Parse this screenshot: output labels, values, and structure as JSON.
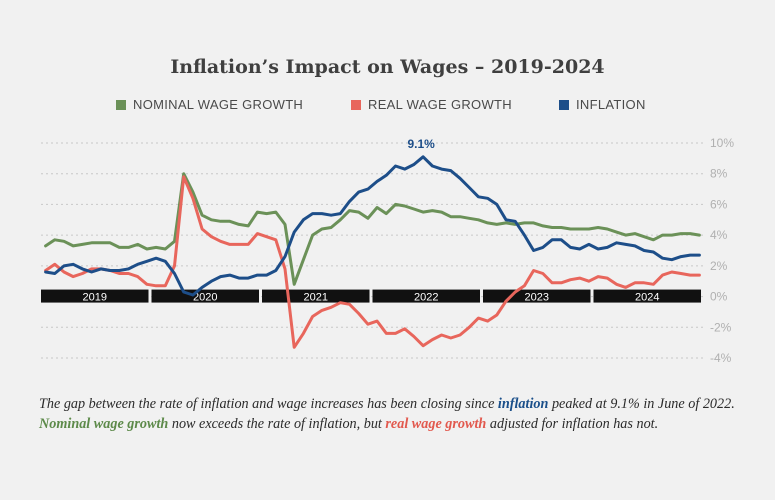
{
  "title": "Inflation’s Impact on Wages – 2019-2024",
  "legend": {
    "nominal": "NOMINAL WAGE GROWTH",
    "real": "REAL WAGE GROWTH",
    "inflation": "INFLATION"
  },
  "colors": {
    "nominal": "#6b9158",
    "real": "#e8665c",
    "inflation": "#1d4e89",
    "grid": "#c8c8c8",
    "tick": "#b0b0b0",
    "band": "#111111"
  },
  "annotation": {
    "label": "9.1%"
  },
  "caption": {
    "p1": "The gap between the rate of inflation and wage increases has been closing since ",
    "k1": "inflation",
    "p2": " peaked at 9.1% in June of 2022. ",
    "k2": "Nominal wage growth",
    "p3": " now exceeds the rate of inflation, but ",
    "k3": "real wage growth",
    "p4": " adjusted for inflation has not."
  },
  "chart_data": {
    "type": "line",
    "x_start": "2019-01",
    "x_end": "2024-12",
    "years": [
      "2019",
      "2020",
      "2021",
      "2022",
      "2023",
      "2024"
    ],
    "yticks": [
      10,
      8,
      6,
      4,
      2,
      0,
      -2,
      -4
    ],
    "ytick_labels": [
      "10%",
      "8%",
      "6%",
      "4%",
      "2%",
      "0%",
      "-2%",
      "-4%"
    ],
    "ylim": [
      -4,
      10
    ],
    "grid": true,
    "legend_position": "top",
    "series": [
      {
        "key": "nominal",
        "name": "NOMINAL WAGE GROWTH",
        "values": [
          3.3,
          3.7,
          3.6,
          3.3,
          3.4,
          3.5,
          3.5,
          3.5,
          3.2,
          3.2,
          3.4,
          3.1,
          3.2,
          3.1,
          3.6,
          8.0,
          6.8,
          5.3,
          5.0,
          4.9,
          4.9,
          4.7,
          4.6,
          5.5,
          5.4,
          5.5,
          4.7,
          0.8,
          2.4,
          4.0,
          4.4,
          4.5,
          5.0,
          5.6,
          5.5,
          5.1,
          5.8,
          5.4,
          6.0,
          5.9,
          5.7,
          5.5,
          5.6,
          5.5,
          5.2,
          5.2,
          5.1,
          5.0,
          4.8,
          4.7,
          4.8,
          4.7,
          4.8,
          4.8,
          4.6,
          4.5,
          4.5,
          4.4,
          4.4,
          4.4,
          4.5,
          4.4,
          4.2,
          4.0,
          4.1,
          3.9,
          3.7,
          4.0,
          4.0,
          4.1,
          4.1,
          4.0
        ]
      },
      {
        "key": "real",
        "name": "REAL WAGE GROWTH",
        "values": [
          1.7,
          2.1,
          1.6,
          1.3,
          1.5,
          1.8,
          1.8,
          1.7,
          1.5,
          1.5,
          1.3,
          0.8,
          0.7,
          0.7,
          2.0,
          7.8,
          6.4,
          4.4,
          3.9,
          3.6,
          3.4,
          3.4,
          3.4,
          4.1,
          3.9,
          3.7,
          1.8,
          -3.3,
          -2.4,
          -1.3,
          -0.9,
          -0.7,
          -0.4,
          -0.5,
          -1.1,
          -1.8,
          -1.6,
          -2.4,
          -2.4,
          -2.1,
          -2.6,
          -3.2,
          -2.8,
          -2.5,
          -2.7,
          -2.5,
          -2.0,
          -1.4,
          -1.6,
          -1.2,
          -0.3,
          0.3,
          0.7,
          1.7,
          1.5,
          0.9,
          0.9,
          1.1,
          1.2,
          1.0,
          1.3,
          1.2,
          0.8,
          0.6,
          0.9,
          0.9,
          0.8,
          1.4,
          1.6,
          1.5,
          1.4,
          1.4
        ]
      },
      {
        "key": "inflation",
        "name": "INFLATION",
        "values": [
          1.6,
          1.5,
          2.0,
          2.1,
          1.8,
          1.6,
          1.8,
          1.7,
          1.7,
          1.8,
          2.1,
          2.3,
          2.5,
          2.3,
          1.5,
          0.3,
          0.1,
          0.6,
          1.0,
          1.3,
          1.4,
          1.2,
          1.2,
          1.4,
          1.4,
          1.7,
          2.6,
          4.2,
          5.0,
          5.4,
          5.4,
          5.3,
          5.4,
          6.2,
          6.8,
          7.0,
          7.5,
          7.9,
          8.5,
          8.3,
          8.6,
          9.1,
          8.5,
          8.3,
          8.2,
          7.7,
          7.1,
          6.5,
          6.4,
          6.0,
          5.0,
          4.9,
          4.0,
          3.0,
          3.2,
          3.7,
          3.7,
          3.2,
          3.1,
          3.4,
          3.1,
          3.2,
          3.5,
          3.4,
          3.3,
          3.0,
          2.9,
          2.5,
          2.4,
          2.6,
          2.7,
          2.7
        ]
      }
    ]
  }
}
